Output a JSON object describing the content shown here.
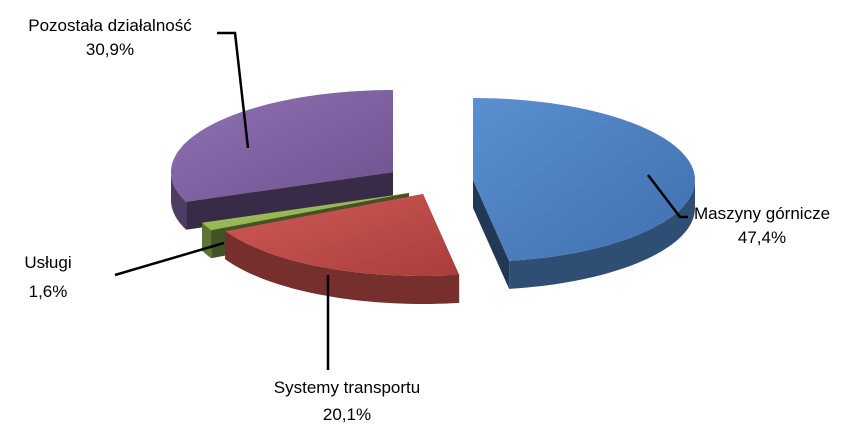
{
  "chart_data": {
    "type": "pie",
    "style": "3d-exploded",
    "title": "",
    "legend": "none",
    "slices": [
      {
        "label": "Maszyny górnicze",
        "value_label": "47,4%",
        "value": 47.4,
        "color": "#4a7ebb"
      },
      {
        "label": "Systemy transportu",
        "value_label": "20,1%",
        "value": 20.1,
        "color": "#be4b48"
      },
      {
        "label": "Usługi",
        "value_label": "1,6%",
        "value": 1.6,
        "color": "#98b954"
      },
      {
        "label": "Pozostała działalność",
        "value_label": "30,9%",
        "value": 30.9,
        "color": "#7d60a0"
      }
    ]
  }
}
